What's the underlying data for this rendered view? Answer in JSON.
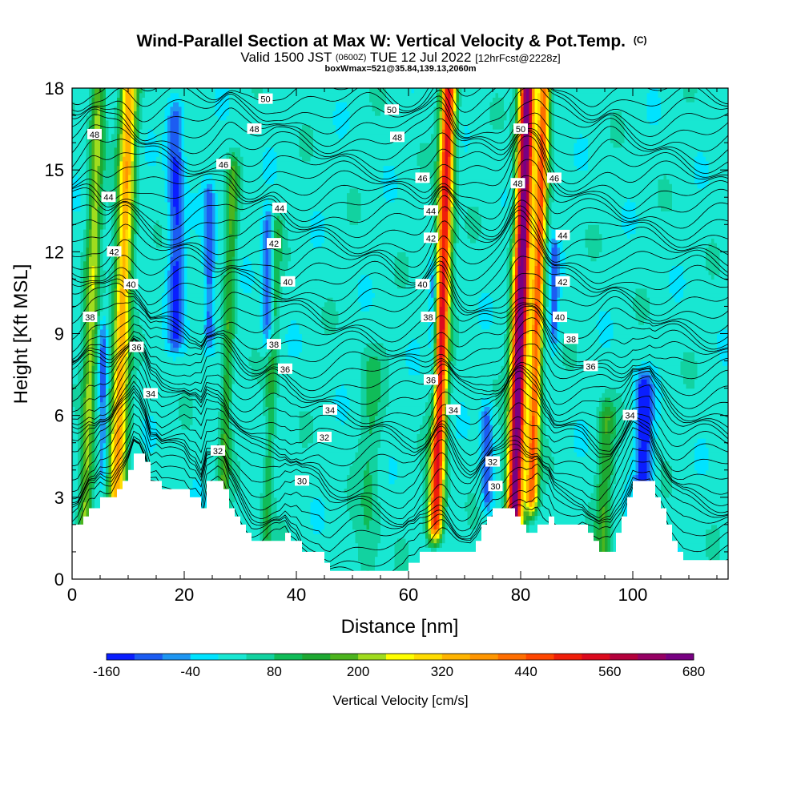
{
  "chart_data": {
    "type": "heatmap",
    "title": "Wind-Parallel Section at Max W: Vertical Velocity & Pot.Temp.",
    "title_mark": "(C)",
    "subtitle": {
      "part1": "Valid 1500 JST",
      "part2": "(0600Z)",
      "part3": "TUE 12 Jul 2022",
      "part4": "[12hrFcst@2228z]"
    },
    "subtitle2": "boxWmax=521@35.84,139.13,2060m",
    "xlabel": "Distance [nm]",
    "ylabel": "Height [Kft MSL]",
    "xlim": [
      0,
      117
    ],
    "ylim": [
      0,
      18
    ],
    "x_ticks": [
      0,
      20,
      40,
      60,
      80,
      100
    ],
    "y_ticks": [
      0,
      3,
      6,
      9,
      12,
      15,
      18
    ],
    "colorbar": {
      "label": "Vertical Velocity [cm/s]",
      "tick_labels": [
        "-160",
        "-40",
        "80",
        "200",
        "320",
        "440",
        "560",
        "680"
      ],
      "levels": [
        -160,
        -120,
        -80,
        -40,
        0,
        40,
        80,
        120,
        160,
        200,
        240,
        280,
        320,
        360,
        400,
        440,
        480,
        520,
        560,
        600,
        640,
        680
      ],
      "colors": [
        "#0a1eff",
        "#1c5cf2",
        "#1e96f2",
        "#00e3ff",
        "#18e7d2",
        "#12d2a0",
        "#10bc58",
        "#1ea832",
        "#4cb41e",
        "#a0dc1e",
        "#ffff00",
        "#ffdc00",
        "#ffb400",
        "#ff9600",
        "#ff6e00",
        "#ff4600",
        "#f01e0a",
        "#dc0a1e",
        "#b4003c",
        "#960064",
        "#780082"
      ]
    },
    "background_value": 20,
    "updraft_cores": [
      {
        "x": 3.5,
        "peak": 200,
        "from": 1.5,
        "to": 18,
        "width": 1.2
      },
      {
        "x": 9,
        "peak": 330,
        "from": 2,
        "to": 18,
        "width": 1.5
      },
      {
        "x": 28,
        "peak": 140,
        "from": 3,
        "to": 15,
        "width": 1.0
      },
      {
        "x": 36,
        "peak": 100,
        "from": 1.5,
        "to": 13,
        "width": 1.0
      },
      {
        "x": 54,
        "peak": 60,
        "from": 0.5,
        "to": 8,
        "width": 2.0
      },
      {
        "x": 66,
        "peak": 520,
        "from": 2,
        "to": 18,
        "width": 1.3
      },
      {
        "x": 80,
        "peak": 680,
        "from": 2,
        "to": 18,
        "width": 1.4
      },
      {
        "x": 83,
        "peak": 420,
        "from": 3,
        "to": 18,
        "width": 1.1
      },
      {
        "x": 96,
        "peak": 130,
        "from": 1,
        "to": 6,
        "width": 1.4
      }
    ],
    "downdraft_cores": [
      {
        "x": 5.5,
        "peak": -90,
        "from": 4,
        "to": 9,
        "width": 0.7
      },
      {
        "x": 18.5,
        "peak": -130,
        "from": 9,
        "to": 17,
        "width": 1.4
      },
      {
        "x": 24.5,
        "peak": -110,
        "from": 9,
        "to": 14,
        "width": 1.0
      },
      {
        "x": 35,
        "peak": -120,
        "from": 9,
        "to": 13,
        "width": 1.0
      },
      {
        "x": 64.5,
        "peak": -130,
        "from": 6,
        "to": 11,
        "width": 0.8
      },
      {
        "x": 74,
        "peak": -110,
        "from": 3,
        "to": 6,
        "width": 1.0
      },
      {
        "x": 86,
        "peak": -100,
        "from": 9,
        "to": 12,
        "width": 0.8
      },
      {
        "x": 102,
        "peak": -160,
        "from": 3,
        "to": 7,
        "width": 1.5
      }
    ],
    "terrain_heights": [
      [
        0,
        2.0
      ],
      [
        1,
        2.0
      ],
      [
        2,
        2.3
      ],
      [
        3,
        2.6
      ],
      [
        4,
        2.6
      ],
      [
        5,
        3.0
      ],
      [
        6,
        3.0
      ],
      [
        7,
        3.0
      ],
      [
        8,
        3.3
      ],
      [
        9,
        3.6
      ],
      [
        10,
        4.0
      ],
      [
        11,
        4.6
      ],
      [
        12,
        4.6
      ],
      [
        13,
        4.3
      ],
      [
        14,
        3.6
      ],
      [
        15,
        3.6
      ],
      [
        16,
        3.3
      ],
      [
        17,
        3.3
      ],
      [
        18,
        3.3
      ],
      [
        19,
        3.3
      ],
      [
        20,
        3.3
      ],
      [
        21,
        3.0
      ],
      [
        22,
        3.0
      ],
      [
        23,
        2.6
      ],
      [
        24,
        3.6
      ],
      [
        25,
        3.6
      ],
      [
        26,
        3.6
      ],
      [
        27,
        3.3
      ],
      [
        28,
        2.6
      ],
      [
        29,
        2.3
      ],
      [
        30,
        2.0
      ],
      [
        31,
        1.7
      ],
      [
        32,
        1.4
      ],
      [
        33,
        1.4
      ],
      [
        34,
        1.4
      ],
      [
        35,
        1.4
      ],
      [
        36,
        1.4
      ],
      [
        37,
        1.4
      ],
      [
        38,
        1.7
      ],
      [
        39,
        1.4
      ],
      [
        40,
        1.4
      ],
      [
        41,
        1.0
      ],
      [
        42,
        1.0
      ],
      [
        43,
        1.0
      ],
      [
        44,
        1.0
      ],
      [
        45,
        0.6
      ],
      [
        46,
        0.3
      ],
      [
        47,
        0.3
      ],
      [
        48,
        0.3
      ],
      [
        49,
        0.3
      ],
      [
        50,
        0.3
      ],
      [
        51,
        0.3
      ],
      [
        52,
        0.3
      ],
      [
        53,
        0.3
      ],
      [
        54,
        0.3
      ],
      [
        55,
        0.3
      ],
      [
        56,
        0.3
      ],
      [
        57,
        0.3
      ],
      [
        58,
        0.3
      ],
      [
        59,
        0.3
      ],
      [
        60,
        0.6
      ],
      [
        61,
        0.6
      ],
      [
        62,
        1.0
      ],
      [
        63,
        1.0
      ],
      [
        64,
        1.0
      ],
      [
        65,
        1.0
      ],
      [
        66,
        1.0
      ],
      [
        67,
        1.0
      ],
      [
        68,
        1.0
      ],
      [
        69,
        1.0
      ],
      [
        70,
        1.0
      ],
      [
        71,
        1.0
      ],
      [
        72,
        1.4
      ],
      [
        73,
        2.0
      ],
      [
        74,
        2.3
      ],
      [
        75,
        2.6
      ],
      [
        76,
        2.6
      ],
      [
        77,
        2.6
      ],
      [
        78,
        2.6
      ],
      [
        79,
        2.3
      ],
      [
        80,
        2.0
      ],
      [
        81,
        1.7
      ],
      [
        82,
        1.7
      ],
      [
        83,
        2.0
      ],
      [
        84,
        2.0
      ],
      [
        85,
        2.3
      ],
      [
        86,
        2.0
      ],
      [
        87,
        2.0
      ],
      [
        88,
        2.0
      ],
      [
        89,
        2.0
      ],
      [
        90,
        2.0
      ],
      [
        91,
        2.0
      ],
      [
        92,
        1.7
      ],
      [
        93,
        1.4
      ],
      [
        94,
        1.0
      ],
      [
        95,
        1.0
      ],
      [
        96,
        1.0
      ],
      [
        97,
        1.7
      ],
      [
        98,
        2.3
      ],
      [
        99,
        3.0
      ],
      [
        100,
        3.6
      ],
      [
        101,
        3.6
      ],
      [
        102,
        3.6
      ],
      [
        103,
        3.6
      ],
      [
        104,
        3.0
      ],
      [
        105,
        2.6
      ],
      [
        106,
        2.0
      ],
      [
        107,
        1.4
      ],
      [
        108,
        1.0
      ],
      [
        109,
        0.7
      ],
      [
        110,
        0.7
      ],
      [
        111,
        0.7
      ],
      [
        112,
        0.7
      ],
      [
        113,
        0.7
      ],
      [
        114,
        0.7
      ],
      [
        115,
        0.7
      ],
      [
        116,
        0.7
      ],
      [
        117,
        0.7
      ]
    ],
    "isentropes": [
      {
        "level": "30",
        "label_x": 41,
        "label_y": 3.6
      },
      {
        "level": "32",
        "label_x": 45,
        "label_y": 5.2
      },
      {
        "level": "34",
        "label_x": 46,
        "label_y": 6.2
      },
      {
        "level": "36",
        "label_x": 38,
        "label_y": 7.7
      },
      {
        "level": "38",
        "label_x": 36,
        "label_y": 8.6
      },
      {
        "level": "40",
        "label_x": 38.5,
        "label_y": 10.9
      },
      {
        "level": "42",
        "label_x": 36,
        "label_y": 12.3
      },
      {
        "level": "44",
        "label_x": 37,
        "label_y": 13.6
      },
      {
        "level": "46",
        "label_x": 27,
        "label_y": 15.2
      },
      {
        "level": "48",
        "label_x": 32.5,
        "label_y": 16.5
      },
      {
        "level": "50",
        "label_x": 34.5,
        "label_y": 17.6
      }
    ],
    "contour_labels": [
      {
        "text": "48",
        "x": 4,
        "y": 16.3
      },
      {
        "text": "44",
        "x": 6.5,
        "y": 14.0
      },
      {
        "text": "42",
        "x": 7.5,
        "y": 12.0
      },
      {
        "text": "40",
        "x": 10.5,
        "y": 10.8
      },
      {
        "text": "38",
        "x": 3.2,
        "y": 9.6
      },
      {
        "text": "36",
        "x": 11.5,
        "y": 8.5
      },
      {
        "text": "34",
        "x": 14,
        "y": 6.8
      },
      {
        "text": "32",
        "x": 26,
        "y": 4.7
      },
      {
        "text": "30",
        "x": 41,
        "y": 3.6
      },
      {
        "text": "32",
        "x": 45,
        "y": 5.2
      },
      {
        "text": "34",
        "x": 46,
        "y": 6.2
      },
      {
        "text": "36",
        "x": 38,
        "y": 7.7
      },
      {
        "text": "38",
        "x": 36,
        "y": 8.6
      },
      {
        "text": "40",
        "x": 38.5,
        "y": 10.9
      },
      {
        "text": "42",
        "x": 36,
        "y": 12.3
      },
      {
        "text": "44",
        "x": 37,
        "y": 13.6
      },
      {
        "text": "46",
        "x": 27,
        "y": 15.2
      },
      {
        "text": "48",
        "x": 32.5,
        "y": 16.5
      },
      {
        "text": "50",
        "x": 34.5,
        "y": 17.6
      },
      {
        "text": "50",
        "x": 57,
        "y": 17.2
      },
      {
        "text": "48",
        "x": 58,
        "y": 16.2
      },
      {
        "text": "46",
        "x": 62.5,
        "y": 14.7
      },
      {
        "text": "44",
        "x": 64,
        "y": 13.5
      },
      {
        "text": "42",
        "x": 64,
        "y": 12.5
      },
      {
        "text": "40",
        "x": 62.5,
        "y": 10.8
      },
      {
        "text": "38",
        "x": 63.5,
        "y": 9.6
      },
      {
        "text": "36",
        "x": 64,
        "y": 7.3
      },
      {
        "text": "34",
        "x": 68,
        "y": 6.2
      },
      {
        "text": "32",
        "x": 75,
        "y": 4.3
      },
      {
        "text": "30",
        "x": 75.5,
        "y": 3.4
      },
      {
        "text": "50",
        "x": 80,
        "y": 16.5
      },
      {
        "text": "48",
        "x": 79.5,
        "y": 14.5
      },
      {
        "text": "46",
        "x": 86,
        "y": 14.7
      },
      {
        "text": "44",
        "x": 87.5,
        "y": 12.6
      },
      {
        "text": "42",
        "x": 87.5,
        "y": 10.9
      },
      {
        "text": "40",
        "x": 87,
        "y": 9.6
      },
      {
        "text": "38",
        "x": 89,
        "y": 8.8
      },
      {
        "text": "36",
        "x": 92.5,
        "y": 7.8
      },
      {
        "text": "34",
        "x": 99.5,
        "y": 6.0
      }
    ]
  }
}
